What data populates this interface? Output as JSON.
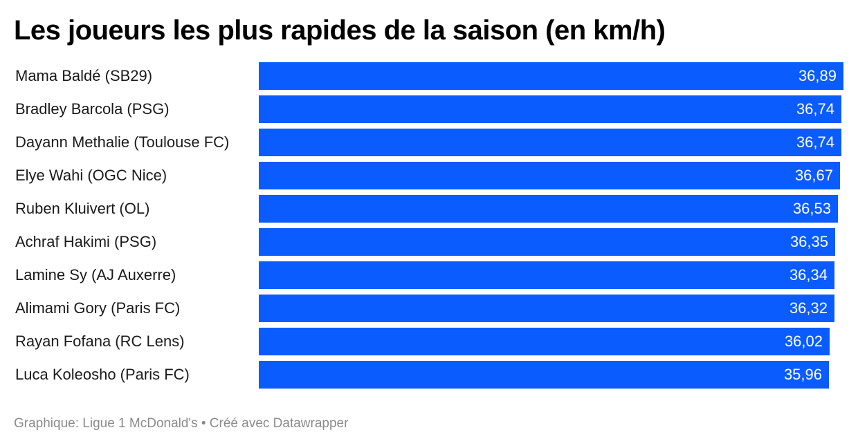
{
  "title": "Les joueurs les plus rapides de la saison (en km/h)",
  "footer": {
    "source": "Graphique: Ligue 1 McDonald's",
    "separator": " • ",
    "credit": "Créé avec Datawrapper"
  },
  "colors": {
    "bar": "#0a5cff",
    "value_text": "#ffffff"
  },
  "chart_data": {
    "type": "bar",
    "orientation": "horizontal",
    "title": "Les joueurs les plus rapides de la saison (en km/h)",
    "xlabel": "",
    "ylabel": "",
    "xlim": [
      0,
      36.89
    ],
    "grid": false,
    "legend": "none",
    "categories": [
      "Mama Baldé (SB29)",
      "Bradley Barcola (PSG)",
      "Dayann Methalie (Toulouse FC)",
      "Elye Wahi (OGC Nice)",
      "Ruben Kluivert (OL)",
      "Achraf Hakimi (PSG)",
      "Lamine Sy (AJ Auxerre)",
      "Alimami Gory (Paris FC)",
      "Rayan Fofana (RC Lens)",
      "Luca Koleosho (Paris FC)"
    ],
    "values": [
      36.89,
      36.74,
      36.74,
      36.67,
      36.53,
      36.35,
      36.34,
      36.32,
      36.02,
      35.96
    ],
    "value_labels": [
      "36,89",
      "36,74",
      "36,74",
      "36,67",
      "36,53",
      "36,35",
      "36,34",
      "36,32",
      "36,02",
      "35,96"
    ]
  }
}
